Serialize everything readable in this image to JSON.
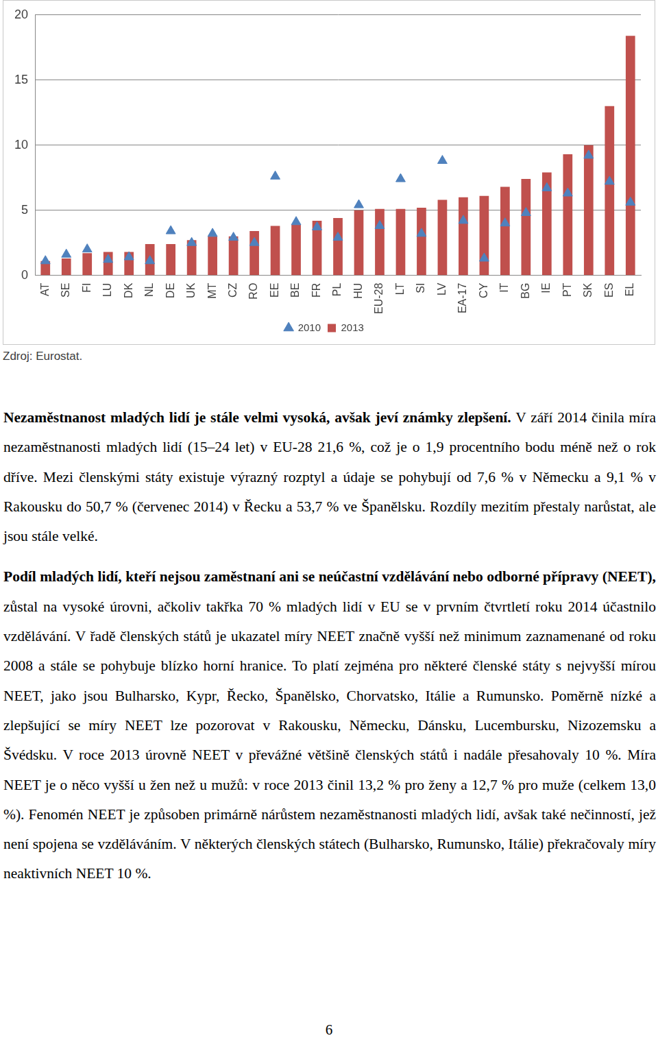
{
  "chart_data": {
    "type": "bar",
    "categories": [
      "AT",
      "SE",
      "FI",
      "LU",
      "DK",
      "NL",
      "DE",
      "UK",
      "MT",
      "CZ",
      "RO",
      "EE",
      "BE",
      "FR",
      "PL",
      "HU",
      "EU-28",
      "LT",
      "SI",
      "LV",
      "EA-17",
      "CY",
      "IT",
      "BG",
      "IE",
      "PT",
      "SK",
      "ES",
      "EL"
    ],
    "series": [
      {
        "name": "2013",
        "type": "bar",
        "color": "#c0504d",
        "values": [
          1.1,
          1.3,
          1.7,
          1.8,
          1.8,
          2.4,
          2.4,
          2.7,
          3.0,
          3.0,
          3.4,
          3.8,
          3.9,
          4.2,
          4.4,
          5.0,
          5.1,
          5.1,
          5.2,
          5.8,
          6.0,
          6.1,
          6.8,
          7.4,
          7.9,
          9.3,
          10.0,
          13.0,
          18.4
        ]
      },
      {
        "name": "2010",
        "type": "scatter",
        "marker": "triangle",
        "color": "#4f81bd",
        "values": [
          1.1,
          1.6,
          2.0,
          1.2,
          1.4,
          1.1,
          3.4,
          2.5,
          3.2,
          2.9,
          2.5,
          7.6,
          4.1,
          3.7,
          2.9,
          5.4,
          3.8,
          7.4,
          3.2,
          8.8,
          4.2,
          1.3,
          4.0,
          4.8,
          6.7,
          6.3,
          9.2,
          7.2,
          5.6
        ]
      }
    ],
    "ylim": [
      0,
      20
    ],
    "yticks": [
      0,
      5,
      10,
      15,
      20
    ],
    "grid": true,
    "legend": "bottom"
  },
  "source": "Zdroj: Eurostat.",
  "paragraphs": [
    {
      "bold": "Nezaměstnanost mladých lidí je stále velmi vysoká, avšak jeví známky zlepšení.",
      "text": " V září 2014 činila míra nezaměstnanosti mladých lidí (15–24 let) v EU-28 21,6 %, což je o 1,9 procentního bodu méně než o rok dříve. Mezi členskými státy existuje výrazný rozptyl a údaje se pohybují od 7,6 % v Německu a 9,1 % v Rakousku do 50,7 % (červenec 2014) v Řecku a 53,7 % ve Španělsku. Rozdíly mezitím přestaly narůstat, ale jsou stále velké."
    },
    {
      "bold": "Podíl mladých lidí, kteří nejsou zaměstnaní ani se neúčastní vzdělávání nebo odborné přípravy (NEET),",
      "text": " zůstal na vysoké úrovni, ačkoliv takřka 70 % mladých lidí v EU se v prvním čtvrtletí roku 2014 účastnilo vzdělávání. V řadě členských států je ukazatel míry NEET značně vyšší než minimum zaznamenané od roku 2008 a stále se pohybuje blízko horní hranice. To platí zejména pro některé členské státy s nejvyšší mírou NEET, jako jsou Bulharsko, Kypr, Řecko, Španělsko, Chorvatsko, Itálie a Rumunsko. Poměrně nízké a zlepšující se míry NEET lze pozorovat v Rakousku, Německu, Dánsku, Lucembursku, Nizozemsku a Švédsku. V roce 2013 úrovně NEET v převážné většině členských států i nadále přesahovaly 10 %. Míra NEET je o něco vyšší u žen než u mužů: v roce 2013 činil 13,2 % pro ženy a 12,7 % pro muže (celkem 13,0 %). Fenomén NEET je způsoben primárně nárůstem nezaměstnanosti mladých lidí, avšak také nečinností, jež není spojena se vzděláváním. V některých členských státech (Bulharsko, Rumunsko, Itálie) překračovaly míry neaktivních NEET 10 %."
    }
  ],
  "page_number": "6"
}
